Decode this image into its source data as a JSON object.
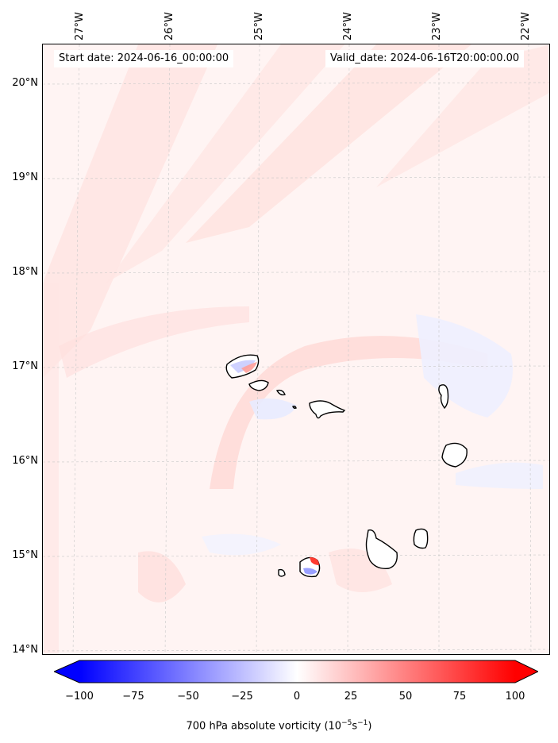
{
  "map": {
    "start_label": "Start date: 2024-06-16_00:00:00",
    "valid_label": "Valid_date: 2024-06-16T20:00:00.00",
    "lon_labels": [
      "27°W",
      "26°W",
      "25°W",
      "24°W",
      "23°W",
      "22°W"
    ],
    "lat_labels": [
      "20°N",
      "19°N",
      "18°N",
      "17°N",
      "16°N",
      "15°N",
      "14°N"
    ]
  },
  "colorbar": {
    "ticks": [
      "−100",
      "−75",
      "−50",
      "−25",
      "0",
      "25",
      "50",
      "75",
      "100"
    ],
    "label_prefix": "700 hPa absolute vorticity (10",
    "label_exp1": "−5",
    "label_mid": "s",
    "label_exp2": "−1",
    "label_suffix": ")",
    "min_color": "#0000ff",
    "mid_color": "#ffffff",
    "max_color": "#ff0000"
  }
}
